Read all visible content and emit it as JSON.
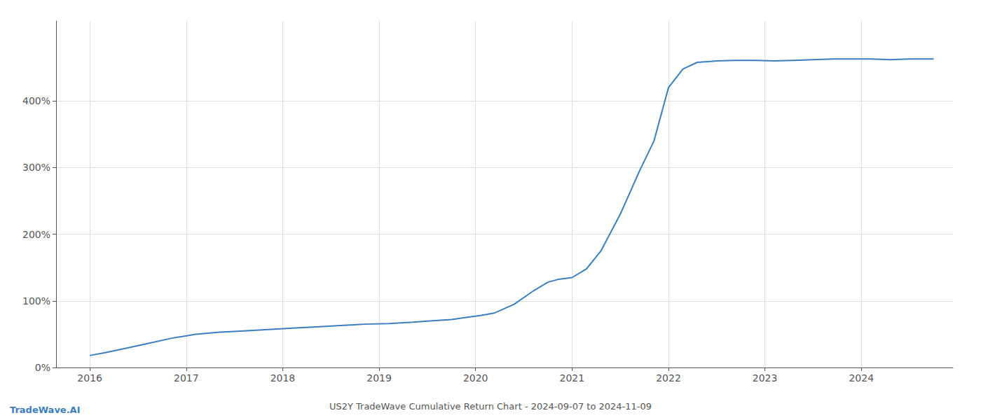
{
  "chart_data": {
    "type": "line",
    "title": "US2Y TradeWave Cumulative Return Chart - 2024-09-07 to 2024-11-09",
    "annotations": [
      "TradeWave.AI"
    ],
    "color": "#3a7ebf",
    "x": [
      2016.0,
      2016.15,
      2016.35,
      2016.6,
      2016.85,
      2017.1,
      2017.35,
      2017.6,
      2017.85,
      2018.1,
      2018.35,
      2018.6,
      2018.85,
      2019.1,
      2019.35,
      2019.55,
      2019.75,
      2019.9,
      2020.05,
      2020.2,
      2020.4,
      2020.6,
      2020.75,
      2020.85,
      2021.0,
      2021.15,
      2021.3,
      2021.5,
      2021.7,
      2021.85,
      2022.0,
      2022.15,
      2022.3,
      2022.5,
      2022.7,
      2022.9,
      2023.1,
      2023.3,
      2023.5,
      2023.7,
      2023.9,
      2024.1,
      2024.3,
      2024.5,
      2024.75
    ],
    "values": [
      18,
      22,
      28,
      36,
      44,
      50,
      53,
      55,
      57,
      59,
      61,
      63,
      65,
      66,
      68,
      70,
      72,
      75,
      78,
      82,
      95,
      115,
      128,
      132,
      135,
      148,
      175,
      230,
      295,
      340,
      420,
      448,
      458,
      460,
      461,
      461,
      460,
      461,
      462,
      463,
      463,
      463,
      462,
      463,
      463
    ],
    "xlim": [
      2015.65,
      2024.95
    ],
    "ylim": [
      0,
      520
    ],
    "xticks": [
      2016,
      2017,
      2018,
      2019,
      2020,
      2021,
      2022,
      2023,
      2024
    ],
    "yticks": [
      {
        "value": 0,
        "label": "0%"
      },
      {
        "value": 100,
        "label": "100%"
      },
      {
        "value": 200,
        "label": "200%"
      },
      {
        "value": 300,
        "label": "300%"
      },
      {
        "value": 400,
        "label": "400%"
      }
    ],
    "grid": true
  }
}
